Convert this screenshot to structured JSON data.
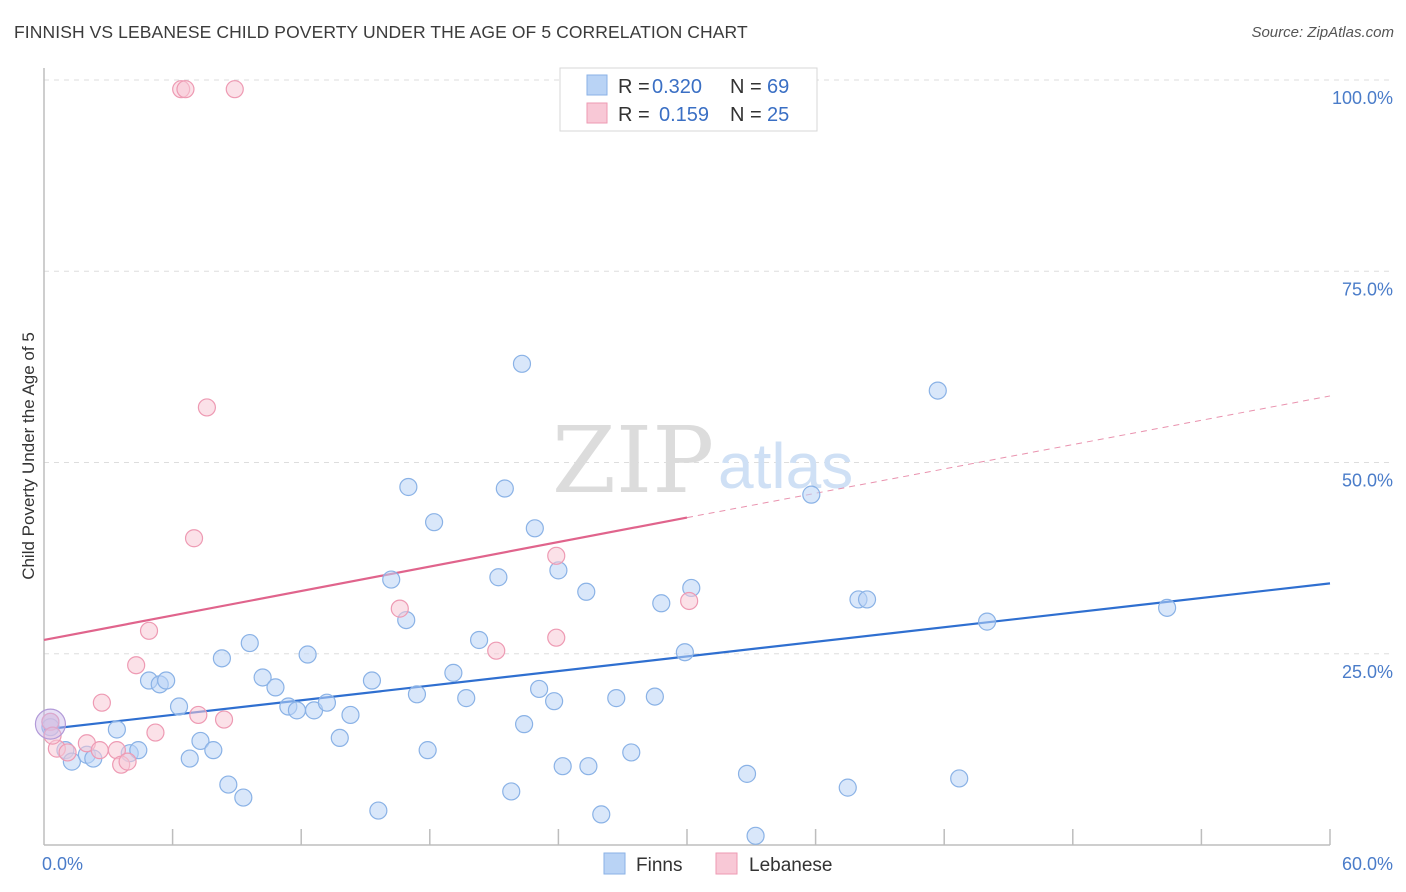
{
  "header": {
    "title": "FINNISH VS LEBANESE CHILD POVERTY UNDER THE AGE OF 5 CORRELATION CHART",
    "source": "Source: ZipAtlas.com"
  },
  "watermark": {
    "zip": "ZIP",
    "atlas": "atlas"
  },
  "colors": {
    "finns_fill": "#b9d3f5",
    "finns_stroke": "#8ab2e6",
    "finns_line": "#2f6fd0",
    "lebanese_fill": "#f8c8d6",
    "lebanese_stroke": "#ee9ab3",
    "lebanese_line": "#e0648c",
    "grid": "#dddddd",
    "axis_label": "#4a7cc9"
  },
  "legend": {
    "rows": [
      {
        "r_label": "R =",
        "r_value": "0.320",
        "n_label": "N =",
        "n_value": "69"
      },
      {
        "r_label": "R =",
        "r_value": "0.159",
        "n_label": "N =",
        "n_value": "25"
      }
    ]
  },
  "chart_data": {
    "type": "scatter",
    "title": "FINNISH VS LEBANESE CHILD POVERTY UNDER THE AGE OF 5 CORRELATION CHART",
    "xlabel": "",
    "ylabel": "Child Poverty Under the Age of 5",
    "xlim": [
      0,
      60
    ],
    "ylim": [
      0,
      100
    ],
    "x_tick_labels": [
      "0.0%",
      "60.0%"
    ],
    "y_ticks": [
      25,
      50,
      75,
      100
    ],
    "y_tick_labels": [
      "25.0%",
      "50.0%",
      "75.0%",
      "100.0%"
    ],
    "grid": true,
    "legend_position": "top-center",
    "series": [
      {
        "name": "Finns",
        "r": 0.32,
        "n": 69,
        "trend": {
          "x": [
            0,
            60
          ],
          "y": [
            15.1,
            34.2
          ]
        },
        "points": [
          [
            0.3,
            16.1
          ],
          [
            1.0,
            12.4
          ],
          [
            1.3,
            10.9
          ],
          [
            2.0,
            11.8
          ],
          [
            2.3,
            11.3
          ],
          [
            3.4,
            15.1
          ],
          [
            4.0,
            12.0
          ],
          [
            4.4,
            12.4
          ],
          [
            4.9,
            21.5
          ],
          [
            5.4,
            21.0
          ],
          [
            5.7,
            21.5
          ],
          [
            6.3,
            18.1
          ],
          [
            6.8,
            11.3
          ],
          [
            7.3,
            13.6
          ],
          [
            7.9,
            12.4
          ],
          [
            8.3,
            24.4
          ],
          [
            8.6,
            7.9
          ],
          [
            9.3,
            6.2
          ],
          [
            9.6,
            26.4
          ],
          [
            10.2,
            21.9
          ],
          [
            10.8,
            20.6
          ],
          [
            11.4,
            18.1
          ],
          [
            11.8,
            17.6
          ],
          [
            12.3,
            24.9
          ],
          [
            12.6,
            17.6
          ],
          [
            13.2,
            18.6
          ],
          [
            13.8,
            14.0
          ],
          [
            14.3,
            17.0
          ],
          [
            15.3,
            21.5
          ],
          [
            15.6,
            4.5
          ],
          [
            16.2,
            34.7
          ],
          [
            16.9,
            29.4
          ],
          [
            17.0,
            46.8
          ],
          [
            17.4,
            19.7
          ],
          [
            17.9,
            12.4
          ],
          [
            18.2,
            42.2
          ],
          [
            19.1,
            22.5
          ],
          [
            19.7,
            19.2
          ],
          [
            20.3,
            26.8
          ],
          [
            21.2,
            35.0
          ],
          [
            21.5,
            46.6
          ],
          [
            21.8,
            7.0
          ],
          [
            22.3,
            62.9
          ],
          [
            22.4,
            15.8
          ],
          [
            22.9,
            41.4
          ],
          [
            23.1,
            20.4
          ],
          [
            23.8,
            18.8
          ],
          [
            24.0,
            35.9
          ],
          [
            24.2,
            10.3
          ],
          [
            25.3,
            33.1
          ],
          [
            25.4,
            10.3
          ],
          [
            26.0,
            4.0
          ],
          [
            26.7,
            19.2
          ],
          [
            27.4,
            12.1
          ],
          [
            28.5,
            19.4
          ],
          [
            28.8,
            31.6
          ],
          [
            29.9,
            25.2
          ],
          [
            30.2,
            33.6
          ],
          [
            32.8,
            9.3
          ],
          [
            33.2,
            1.2
          ],
          [
            35.8,
            45.8
          ],
          [
            37.5,
            7.5
          ],
          [
            38.0,
            32.1
          ],
          [
            38.4,
            32.1
          ],
          [
            41.7,
            59.4
          ],
          [
            42.7,
            8.7
          ],
          [
            44.0,
            29.2
          ],
          [
            52.4,
            31.0
          ],
          [
            0.3,
            15.4
          ]
        ]
      },
      {
        "name": "Lebanese",
        "r": 0.159,
        "n": 25,
        "trend": {
          "x": [
            0,
            30
          ],
          "y": [
            26.8,
            42.8
          ],
          "dashed_to": {
            "x": 60,
            "y": 58.7
          }
        },
        "points": [
          [
            0.3,
            16.1
          ],
          [
            0.6,
            12.6
          ],
          [
            1.1,
            12.1
          ],
          [
            2.0,
            13.3
          ],
          [
            2.6,
            12.4
          ],
          [
            2.7,
            18.6
          ],
          [
            3.4,
            12.4
          ],
          [
            3.6,
            10.5
          ],
          [
            3.9,
            10.9
          ],
          [
            4.3,
            23.5
          ],
          [
            4.9,
            28.0
          ],
          [
            5.2,
            14.7
          ],
          [
            6.4,
            98.8
          ],
          [
            6.6,
            98.8
          ],
          [
            7.0,
            40.1
          ],
          [
            7.2,
            17.0
          ],
          [
            7.6,
            57.2
          ],
          [
            8.4,
            16.4
          ],
          [
            8.9,
            98.8
          ],
          [
            16.6,
            30.9
          ],
          [
            21.1,
            25.4
          ],
          [
            23.9,
            37.8
          ],
          [
            23.9,
            27.1
          ],
          [
            30.1,
            31.9
          ],
          [
            0.4,
            14.3
          ]
        ]
      }
    ]
  }
}
